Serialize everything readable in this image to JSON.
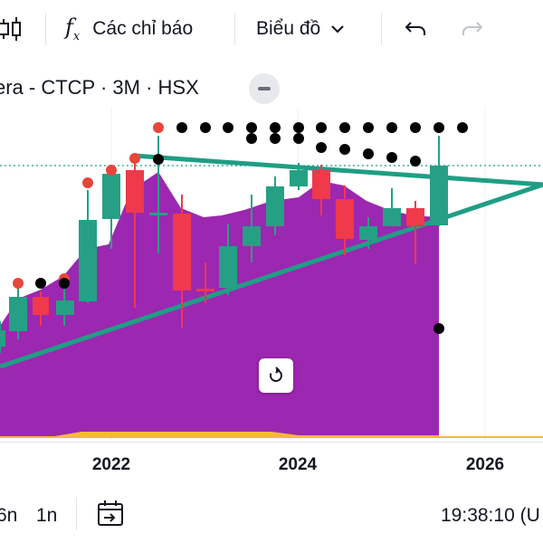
{
  "toolbar": {
    "indicators_label": "Các chỉ báo",
    "chart_type_label": "Biểu đồ"
  },
  "symbol": {
    "title": "era - CTCP · 3M · HSX"
  },
  "chart_data": {
    "type": "candlestick",
    "x_ticks": [
      "2022",
      "2024",
      "2026"
    ],
    "overlays": [
      "filled area",
      "triangle trendlines",
      "dot markers",
      "dotted price line"
    ],
    "colors": {
      "up": "#26a084",
      "down": "#f0394a",
      "area": "#9c27b0",
      "trendline": "#1f9e85",
      "markers_high": "#e8453c",
      "markers": "#000000"
    }
  },
  "bottom": {
    "range_6n": "6n",
    "range_1n": "1n",
    "time": "19:38:10 (U"
  }
}
